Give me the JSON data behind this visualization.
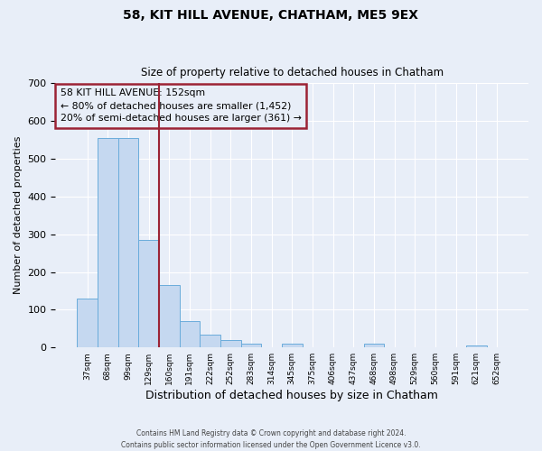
{
  "title": "58, KIT HILL AVENUE, CHATHAM, ME5 9EX",
  "subtitle": "Size of property relative to detached houses in Chatham",
  "xlabel": "Distribution of detached houses by size in Chatham",
  "ylabel": "Number of detached properties",
  "bar_labels": [
    "37sqm",
    "68sqm",
    "99sqm",
    "129sqm",
    "160sqm",
    "191sqm",
    "222sqm",
    "252sqm",
    "283sqm",
    "314sqm",
    "345sqm",
    "375sqm",
    "406sqm",
    "437sqm",
    "468sqm",
    "498sqm",
    "529sqm",
    "560sqm",
    "591sqm",
    "621sqm",
    "652sqm"
  ],
  "bar_values": [
    130,
    555,
    555,
    285,
    165,
    70,
    35,
    20,
    10,
    0,
    10,
    0,
    0,
    0,
    10,
    0,
    0,
    0,
    0,
    5,
    0
  ],
  "bar_color": "#c5d8f0",
  "bar_edge_color": "#6aacdb",
  "vline_color": "#9b2335",
  "ylim": [
    0,
    700
  ],
  "yticks": [
    0,
    100,
    200,
    300,
    400,
    500,
    600,
    700
  ],
  "annotation_title": "58 KIT HILL AVENUE: 152sqm",
  "annotation_line1": "← 80% of detached houses are smaller (1,452)",
  "annotation_line2": "20% of semi-detached houses are larger (361) →",
  "annotation_box_edgecolor": "#9b2335",
  "footer1": "Contains HM Land Registry data © Crown copyright and database right 2024.",
  "footer2": "Contains public sector information licensed under the Open Government Licence v3.0.",
  "background_color": "#e8eef8",
  "grid_color": "#ffffff"
}
